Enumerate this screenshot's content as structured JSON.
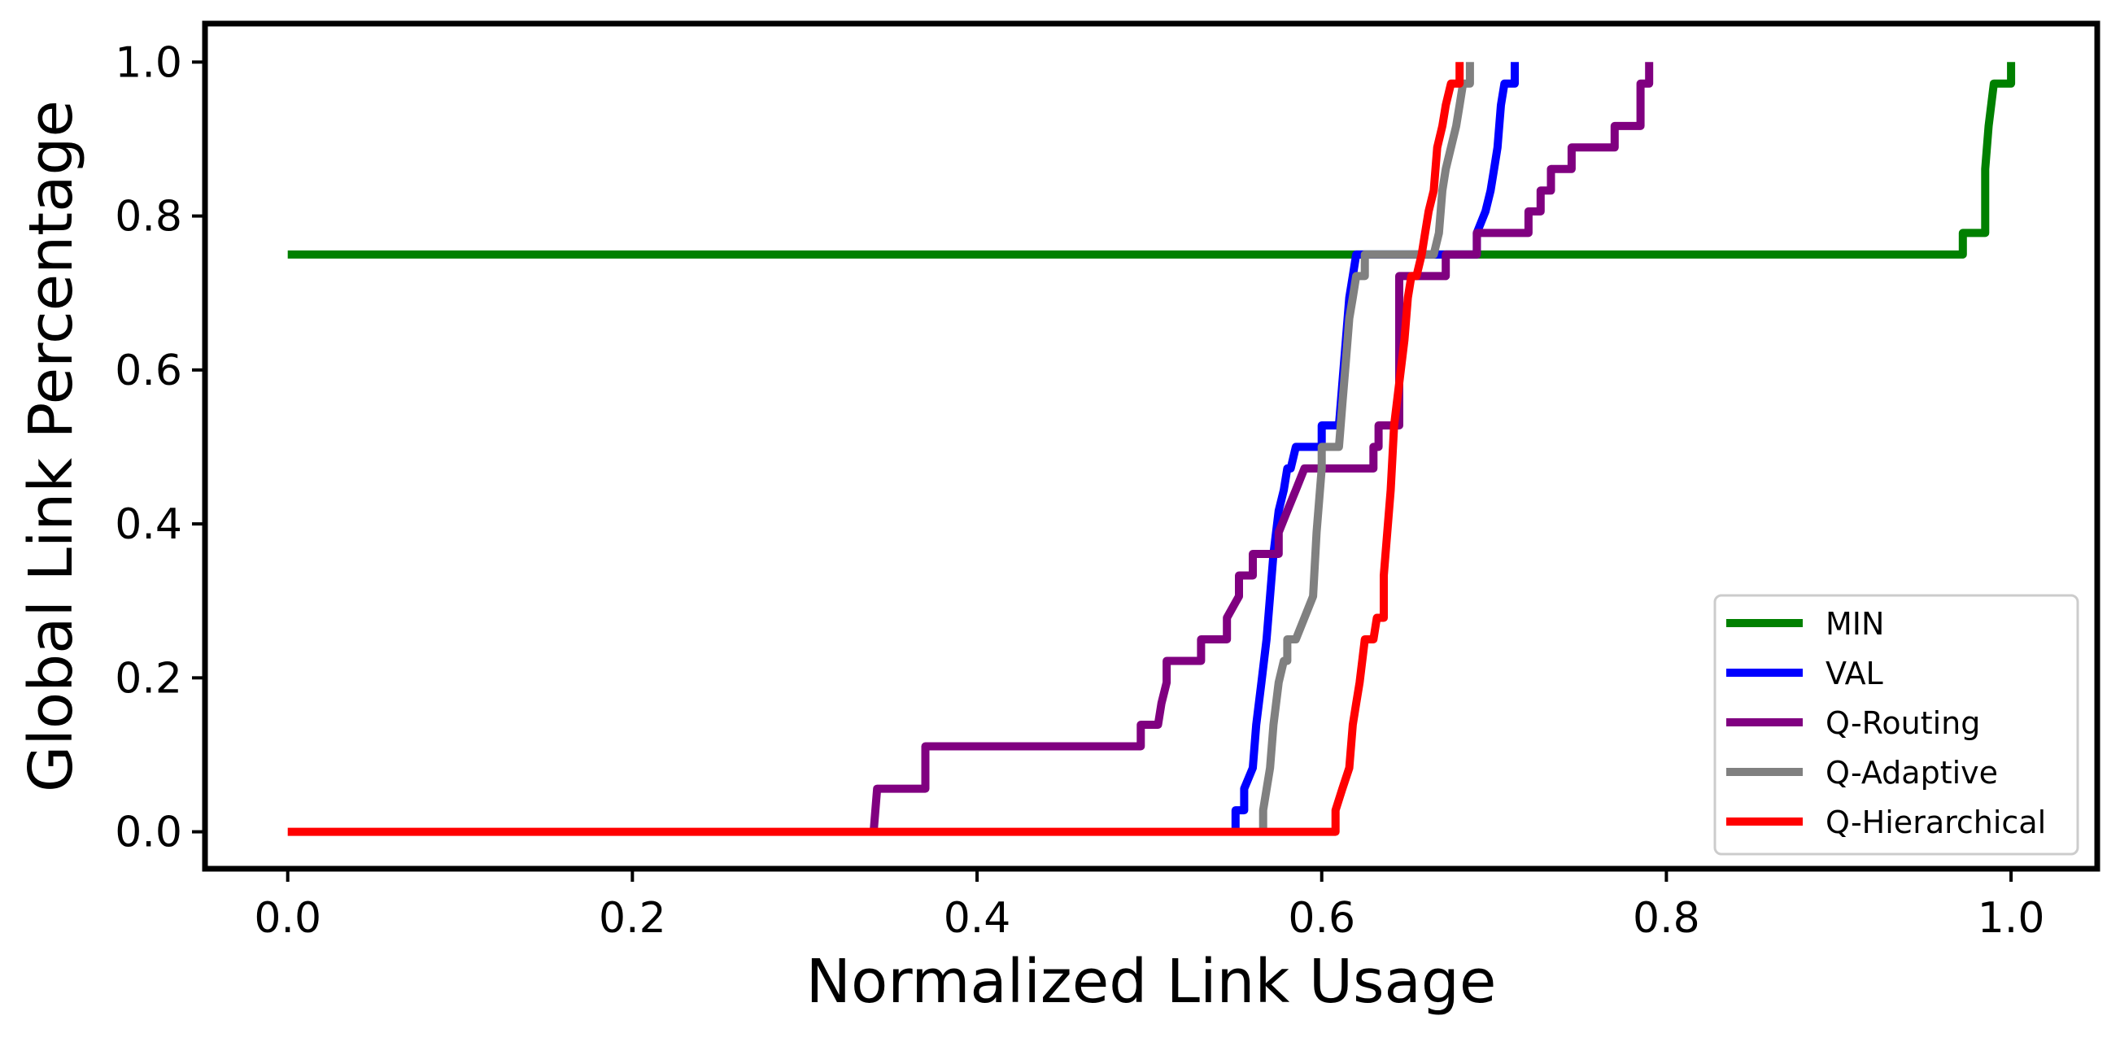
{
  "chart_data": {
    "type": "line",
    "title": "",
    "xlabel": "Normalized Link Usage",
    "ylabel": "Global Link Percentage",
    "xlim": [
      -0.048,
      1.05
    ],
    "ylim": [
      -0.048,
      1.05
    ],
    "xticks": [
      "0.0",
      "0.2",
      "0.4",
      "0.6",
      "0.8",
      "1.0"
    ],
    "yticks": [
      "0.0",
      "0.2",
      "0.4",
      "0.6",
      "0.8",
      "1.0"
    ],
    "grid": false,
    "legend_position": "bottom-right",
    "series": [
      {
        "name": "MIN",
        "color": "#008000",
        "x": [
          0.0,
          0.972,
          0.972,
          0.985,
          0.985,
          0.987,
          0.99,
          0.993,
          1.0,
          1.0
        ],
        "y": [
          0.75,
          0.75,
          0.778,
          0.778,
          0.861,
          0.917,
          0.972,
          0.972,
          0.972,
          1.0
        ]
      },
      {
        "name": "VAL",
        "color": "#0000ff",
        "x": [
          0.55,
          0.55,
          0.555,
          0.555,
          0.56,
          0.562,
          0.565,
          0.568,
          0.57,
          0.572,
          0.575,
          0.578,
          0.58,
          0.582,
          0.585,
          0.59,
          0.59,
          0.6,
          0.6,
          0.61,
          0.612,
          0.614,
          0.616,
          0.618,
          0.62,
          0.622,
          0.69,
          0.69,
          0.695,
          0.698,
          0.7,
          0.702,
          0.704,
          0.706,
          0.712,
          0.712
        ],
        "y": [
          0.0,
          0.028,
          0.028,
          0.056,
          0.083,
          0.139,
          0.194,
          0.25,
          0.306,
          0.361,
          0.417,
          0.444,
          0.472,
          0.472,
          0.5,
          0.5,
          0.5,
          0.5,
          0.528,
          0.528,
          0.583,
          0.639,
          0.694,
          0.722,
          0.75,
          0.75,
          0.75,
          0.778,
          0.806,
          0.833,
          0.861,
          0.889,
          0.944,
          0.972,
          0.972,
          1.0
        ]
      },
      {
        "name": "Q-Routing",
        "color": "#800080",
        "x": [
          0.34,
          0.342,
          0.342,
          0.37,
          0.37,
          0.495,
          0.495,
          0.505,
          0.507,
          0.51,
          0.51,
          0.53,
          0.53,
          0.545,
          0.545,
          0.552,
          0.552,
          0.56,
          0.56,
          0.575,
          0.575,
          0.58,
          0.585,
          0.59,
          0.59,
          0.63,
          0.63,
          0.633,
          0.633,
          0.645,
          0.645,
          0.65,
          0.65,
          0.672,
          0.672,
          0.69,
          0.69,
          0.72,
          0.72,
          0.727,
          0.727,
          0.733,
          0.733,
          0.745,
          0.745,
          0.77,
          0.77,
          0.785,
          0.785,
          0.79,
          0.79
        ],
        "y": [
          0.0,
          0.056,
          0.056,
          0.056,
          0.111,
          0.111,
          0.139,
          0.139,
          0.167,
          0.194,
          0.222,
          0.222,
          0.25,
          0.25,
          0.278,
          0.306,
          0.333,
          0.333,
          0.361,
          0.361,
          0.389,
          0.417,
          0.444,
          0.472,
          0.472,
          0.472,
          0.5,
          0.5,
          0.528,
          0.528,
          0.722,
          0.722,
          0.722,
          0.722,
          0.75,
          0.75,
          0.778,
          0.778,
          0.806,
          0.806,
          0.833,
          0.833,
          0.861,
          0.861,
          0.889,
          0.889,
          0.917,
          0.917,
          0.972,
          0.972,
          1.0
        ]
      },
      {
        "name": "Q-Adaptive",
        "color": "#808080",
        "x": [
          0.566,
          0.566,
          0.57,
          0.572,
          0.575,
          0.578,
          0.58,
          0.58,
          0.585,
          0.585,
          0.595,
          0.597,
          0.6,
          0.6,
          0.61,
          0.612,
          0.614,
          0.616,
          0.618,
          0.62,
          0.625,
          0.625,
          0.665,
          0.668,
          0.67,
          0.672,
          0.675,
          0.678,
          0.68,
          0.682,
          0.684,
          0.686,
          0.686
        ],
        "y": [
          0.0,
          0.028,
          0.083,
          0.139,
          0.194,
          0.222,
          0.222,
          0.25,
          0.25,
          0.25,
          0.306,
          0.389,
          0.472,
          0.5,
          0.5,
          0.556,
          0.611,
          0.667,
          0.694,
          0.722,
          0.722,
          0.75,
          0.75,
          0.778,
          0.833,
          0.861,
          0.889,
          0.917,
          0.944,
          0.972,
          0.972,
          0.972,
          1.0
        ]
      },
      {
        "name": "Q-Hierarchical",
        "color": "#ff0000",
        "x": [
          0.0,
          0.608,
          0.608,
          0.612,
          0.616,
          0.618,
          0.62,
          0.622,
          0.625,
          0.627,
          0.63,
          0.632,
          0.636,
          0.636,
          0.64,
          0.642,
          0.645,
          0.648,
          0.65,
          0.652,
          0.655,
          0.658,
          0.66,
          0.662,
          0.665,
          0.667,
          0.67,
          0.672,
          0.675,
          0.678,
          0.68,
          0.68
        ],
        "y": [
          0.0,
          0.0,
          0.028,
          0.056,
          0.083,
          0.139,
          0.167,
          0.194,
          0.25,
          0.25,
          0.25,
          0.278,
          0.278,
          0.333,
          0.444,
          0.528,
          0.583,
          0.639,
          0.694,
          0.722,
          0.722,
          0.75,
          0.778,
          0.806,
          0.833,
          0.889,
          0.917,
          0.944,
          0.972,
          0.972,
          0.972,
          1.0
        ]
      }
    ]
  }
}
